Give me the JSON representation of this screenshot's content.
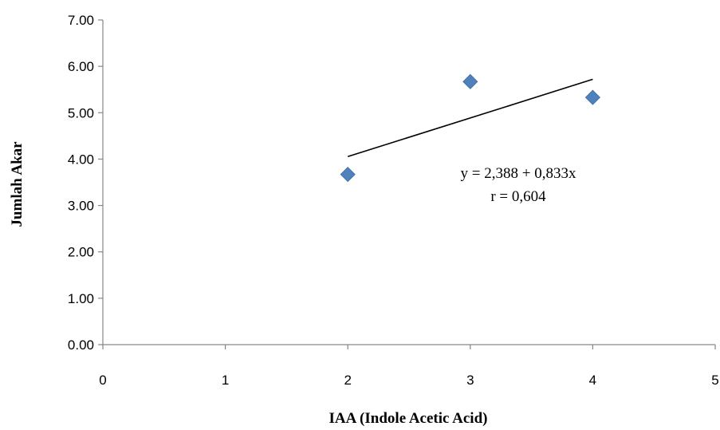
{
  "chart_data": {
    "type": "scatter",
    "title": "",
    "xlabel": "IAA (Indole Acetic Acid)",
    "ylabel": "Jumlah Akar",
    "xlim": [
      0,
      5
    ],
    "ylim": [
      0,
      7
    ],
    "x_ticks": [
      "0",
      "1",
      "2",
      "3",
      "4",
      "5"
    ],
    "y_ticks": [
      "0.00",
      "1.00",
      "2.00",
      "3.00",
      "4.00",
      "5.00",
      "6.00",
      "7.00"
    ],
    "grid": false,
    "series": [
      {
        "marker": "diamond",
        "color": "#4F81BD",
        "points": [
          {
            "x": 2,
            "y": 3.67
          },
          {
            "x": 3,
            "y": 5.67
          },
          {
            "x": 4,
            "y": 5.33
          }
        ]
      }
    ],
    "trendline": {
      "type": "linear",
      "intercept": 2.388,
      "slope": 0.833,
      "x_range": [
        2,
        4
      ],
      "color": "#000000"
    },
    "annotations": [
      "y = 2,388 + 0,833x",
      "r = 0,604"
    ]
  }
}
